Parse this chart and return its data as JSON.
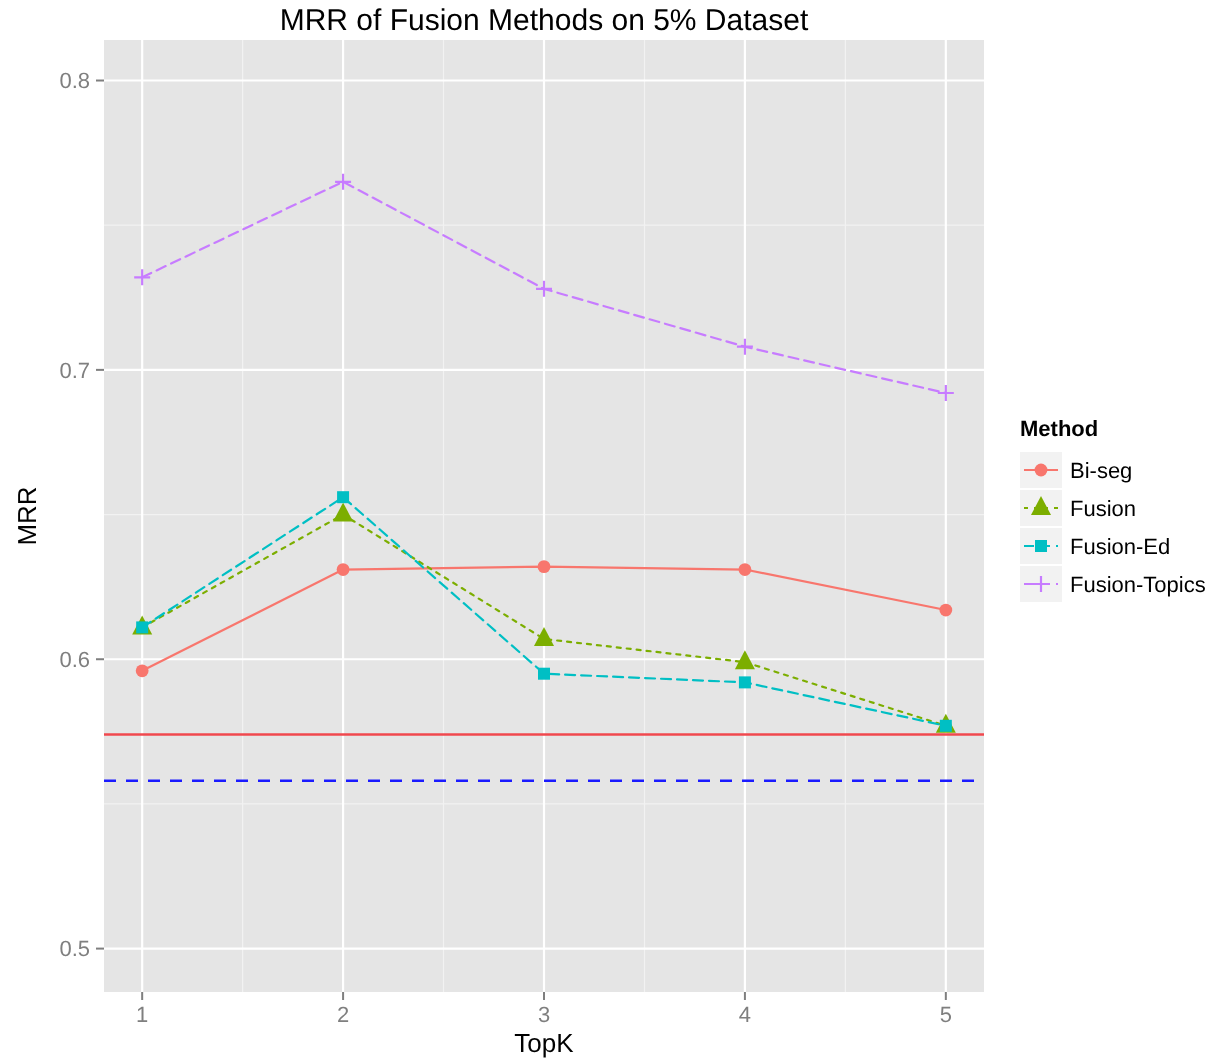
{
  "chart_data": {
    "type": "line",
    "title": "MRR of Fusion Methods on 5% Dataset",
    "xlabel": "TopK",
    "ylabel": "MRR",
    "legend_title": "Method",
    "legend": "right",
    "grid": true,
    "x": [
      1,
      2,
      3,
      4,
      5
    ],
    "xlim": [
      0.81,
      5.19
    ],
    "xticks": [
      1,
      2,
      3,
      4,
      5
    ],
    "ylim": [
      0.485,
      0.814
    ],
    "yticks": [
      0.5,
      0.6,
      0.7,
      0.8
    ],
    "series": [
      {
        "name": "Bi-seg",
        "color": "#f8766d",
        "marker": "circle",
        "line_style": "solid",
        "values": [
          0.596,
          0.631,
          0.632,
          0.631,
          0.617
        ]
      },
      {
        "name": "Fusion",
        "color": "#7cae00",
        "marker": "triangle",
        "line_style": "dotted",
        "values": [
          0.611,
          0.65,
          0.607,
          0.599,
          0.577
        ]
      },
      {
        "name": "Fusion-Ed",
        "color": "#00bfc4",
        "marker": "square",
        "line_style": "dashed",
        "values": [
          0.611,
          0.656,
          0.595,
          0.592,
          0.577
        ]
      },
      {
        "name": "Fusion-Topics",
        "color": "#c77cff",
        "marker": "cross",
        "line_style": "dashed",
        "values": [
          0.732,
          0.765,
          0.728,
          0.708,
          0.692
        ]
      }
    ],
    "ref_lines": [
      {
        "axis": "y",
        "value": 0.574,
        "color": "#f0484e",
        "line_style": "solid"
      },
      {
        "axis": "y",
        "value": 0.558,
        "color": "#1a1aff",
        "line_style": "dashed"
      }
    ]
  }
}
